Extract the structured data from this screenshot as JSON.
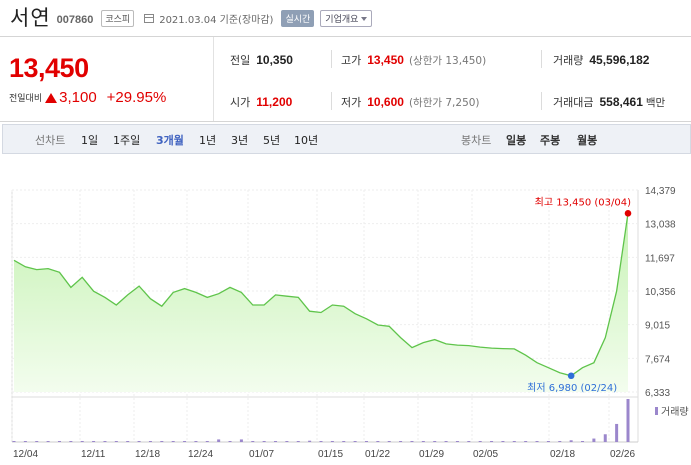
{
  "header": {
    "name": "서연",
    "code": "007860",
    "market": "코스피",
    "date": "2021.03.04  기준(장마감)",
    "realtime": "실시간",
    "corp_info": "기업개요"
  },
  "summary": {
    "price": "13,450",
    "change_label": "전일대비",
    "change_amount": "3,100",
    "change_percent": "+29.95%",
    "prev_close": {
      "label": "전일",
      "value": "10,350"
    },
    "open": {
      "label": "시가",
      "value": "11,200"
    },
    "high": {
      "label": "고가",
      "value": "13,450",
      "sub": "(상한가 13,450)"
    },
    "low": {
      "label": "저가",
      "value": "10,600",
      "sub": "(하한가 7,250)"
    },
    "volume": {
      "label": "거래량",
      "value": "45,596,182"
    },
    "amount": {
      "label": "거래대금",
      "value": "558,461",
      "unit": "백만"
    }
  },
  "tabs": {
    "line_chart": "선차트",
    "ranges": [
      "1일",
      "1주일",
      "3개월",
      "1년",
      "3년",
      "5년",
      "10년"
    ],
    "active_range": "3개월",
    "candle_chart": "봉차트",
    "candles": [
      "일봉",
      "주봉",
      "월봉"
    ]
  },
  "chart_data": {
    "type": "area",
    "y_ticks": [
      "14,379",
      "13,038",
      "11,697",
      "10,356",
      "9,015",
      "7,674",
      "6,333"
    ],
    "ylim": [
      6333,
      14379
    ],
    "x_labels": [
      "12/04",
      "12/11",
      "12/18",
      "12/24",
      "01/07",
      "01/15",
      "01/22",
      "01/29",
      "02/05",
      "02/18",
      "02/26"
    ],
    "series": [
      {
        "values": [
          11580,
          11320,
          11210,
          11250,
          11100,
          10500,
          10900,
          10350,
          10100,
          9800,
          10200,
          10550,
          10050,
          9750,
          10300,
          10450,
          10300,
          10100,
          10250,
          10500,
          10300,
          9800,
          9800,
          10200,
          10150,
          10100,
          9550,
          9500,
          9800,
          9750,
          9450,
          9250,
          9000,
          8950,
          8500,
          8100,
          8300,
          8420,
          8250,
          8200,
          8180,
          8120,
          8080,
          8060,
          8050,
          7800,
          7500,
          7300,
          7100,
          6980,
          7300,
          7500,
          8500,
          10350,
          13450
        ]
      }
    ],
    "high_label": "최고 13,450 (03/04)",
    "low_label": "최저 6,980 (02/24)",
    "volume_label": "거래량",
    "volume": [
      0.01,
      0.01,
      0.01,
      0.01,
      0.01,
      0.01,
      0.01,
      0.01,
      0.01,
      0.01,
      0.01,
      0.01,
      0.01,
      0.01,
      0.01,
      0.01,
      0.01,
      0.01,
      0.06,
      0.02,
      0.06,
      0.02,
      0.01,
      0.01,
      0.01,
      0.01,
      0.03,
      0.02,
      0.01,
      0.01,
      0.02,
      0.01,
      0.01,
      0.01,
      0.02,
      0.01,
      0.01,
      0.01,
      0.01,
      0.01,
      0.01,
      0.01,
      0.01,
      0.01,
      0.02,
      0.01,
      0.01,
      0.01,
      0.01,
      0.04,
      0.02,
      0.08,
      0.18,
      0.42,
      1.0
    ],
    "colors": {
      "line": "#5fc44b",
      "fill_top": "#c7f2b5",
      "fill_bottom": "#f3fdee",
      "high": "#e10000",
      "low": "#2e6fd8",
      "volume": "#9b87cc"
    }
  }
}
